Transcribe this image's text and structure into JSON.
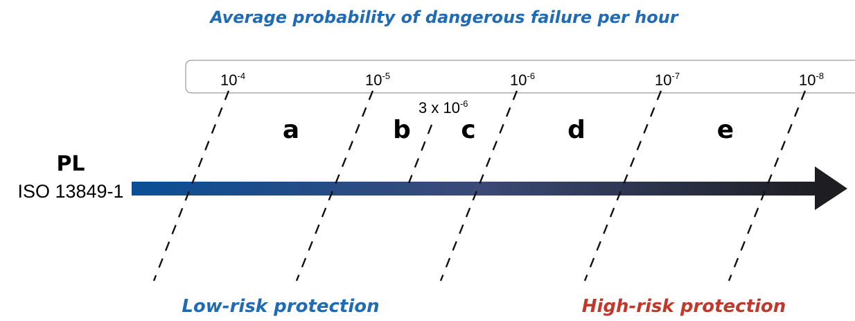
{
  "title": "Average probability of dangerous failure per hour",
  "scale": {
    "ticks": [
      {
        "base": "10",
        "exp": "-4"
      },
      {
        "base": "10",
        "exp": "-5"
      },
      {
        "base": "10",
        "exp": "-6"
      },
      {
        "base": "10",
        "exp": "-7"
      },
      {
        "base": "10",
        "exp": "-8"
      }
    ],
    "mid_marker": {
      "base": "3 x 10",
      "exp": "-6"
    }
  },
  "levels": [
    "a",
    "b",
    "c",
    "d",
    "e"
  ],
  "axis_label": {
    "title": "PL",
    "standard": "ISO 13849-1"
  },
  "footer": {
    "low": "Low-risk protection",
    "high": "High-risk protection"
  },
  "colors": {
    "title": "#1f6bb5",
    "low_risk": "#1f6bb5",
    "high_risk": "#c0392b",
    "arrow_start": "#0a4f96",
    "arrow_mid": "#3b4a77",
    "arrow_end": "#1e1e22",
    "scale_border": "#9a9a9a",
    "dash": "#111111"
  }
}
